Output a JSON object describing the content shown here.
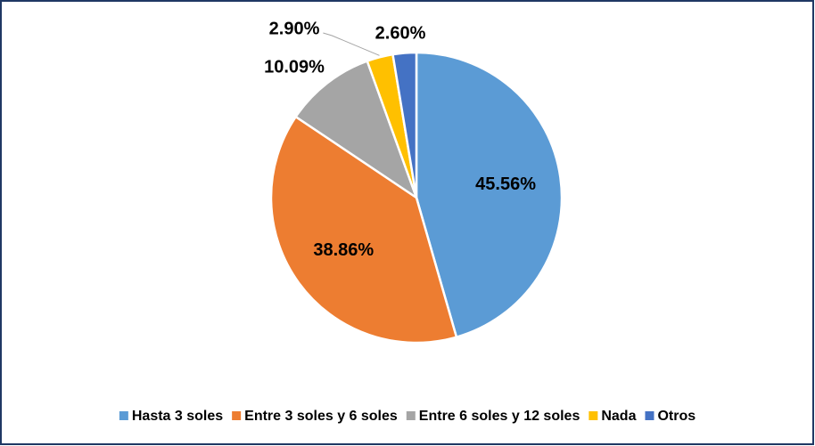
{
  "chart_data": {
    "type": "pie",
    "categories": [
      "Hasta 3 soles",
      "Entre 3 soles y 6 soles",
      "Entre 6 soles y 12 soles",
      "Nada",
      "Otros"
    ],
    "values": [
      45.56,
      38.86,
      10.09,
      2.9,
      2.6
    ],
    "value_labels": [
      "45.56%",
      "38.86%",
      "10.09%",
      "2.90%",
      "2.60%"
    ],
    "colors": [
      "#5b9bd5",
      "#ed7d31",
      "#a5a5a5",
      "#ffc000",
      "#4472c4"
    ],
    "legend": "bottom"
  }
}
